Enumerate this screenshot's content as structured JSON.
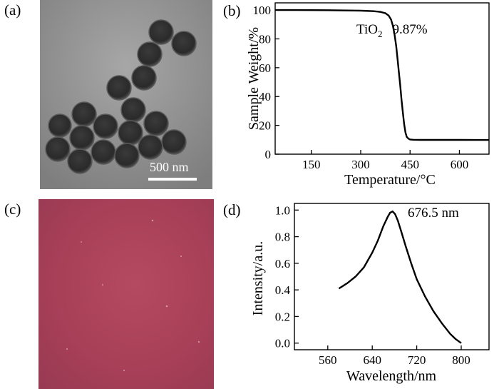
{
  "panels": {
    "a": {
      "label": "(a)",
      "scale_bar": "500 nm"
    },
    "b": {
      "label": "(b)"
    },
    "c": {
      "label": "(c)"
    },
    "d": {
      "label": "(d)"
    }
  },
  "chart_data": [
    {
      "type": "line",
      "panel": "(b)",
      "xlabel": "Temperature/°C",
      "ylabel": "Sample Weight/%",
      "xlim": [
        40,
        690
      ],
      "ylim": [
        0,
        105
      ],
      "xticks": [
        150,
        300,
        450,
        600
      ],
      "yticks": [
        0,
        20,
        40,
        60,
        80,
        100
      ],
      "annotation": {
        "compound": "TiO",
        "subscript": "2",
        "value": "9.87%"
      },
      "series": [
        {
          "x": [
            40,
            100,
            200,
            300,
            340,
            360,
            375,
            385,
            392,
            398,
            403,
            408,
            412,
            416,
            420,
            424,
            428,
            432,
            436,
            440,
            445,
            450,
            460,
            480,
            550,
            600,
            650,
            690
          ],
          "y": [
            100,
            100,
            99.9,
            99.6,
            99.2,
            98.7,
            97.8,
            96.2,
            93.5,
            89,
            83,
            75,
            66,
            57,
            48,
            38,
            29,
            21,
            15,
            12,
            10.8,
            10.2,
            10,
            9.9,
            9.9,
            9.9,
            9.88,
            9.87
          ]
        }
      ]
    },
    {
      "type": "line",
      "panel": "(d)",
      "xlabel": "Wavelength/nm",
      "ylabel": "Intensity/a.u.",
      "xlim": [
        500,
        850
      ],
      "ylim": [
        -0.05,
        1.05
      ],
      "xticks": [
        560,
        640,
        720,
        800
      ],
      "yticks": [
        0.0,
        0.2,
        0.4,
        0.6,
        0.8,
        1.0
      ],
      "annotation": {
        "value": "676.5 nm"
      },
      "series": [
        {
          "x": [
            580,
            595,
            610,
            625,
            640,
            650,
            660,
            668,
            672,
            676.5,
            681,
            686,
            692,
            700,
            710,
            720,
            735,
            750,
            765,
            780,
            790,
            800
          ],
          "y": [
            0.41,
            0.45,
            0.5,
            0.57,
            0.68,
            0.77,
            0.88,
            0.95,
            0.98,
            0.99,
            0.97,
            0.92,
            0.84,
            0.73,
            0.6,
            0.48,
            0.35,
            0.24,
            0.15,
            0.07,
            0.03,
            0.0
          ]
        }
      ]
    }
  ]
}
